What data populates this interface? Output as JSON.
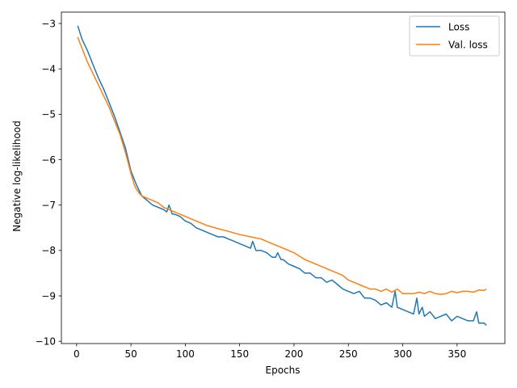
{
  "chart_data": {
    "type": "line",
    "title": "",
    "xlabel": "Epochs",
    "ylabel": "Negative log-likelihood",
    "xlim": [
      -14,
      394
    ],
    "ylim": [
      -10.05,
      -2.75
    ],
    "x_ticks": [
      0,
      50,
      100,
      150,
      200,
      250,
      300,
      350
    ],
    "y_ticks": [
      -10,
      -9,
      -8,
      -7,
      -6,
      -5,
      -4,
      -3
    ],
    "x_tick_labels": [
      "0",
      "50",
      "100",
      "150",
      "200",
      "250",
      "300",
      "350"
    ],
    "y_tick_labels": [
      "−10",
      "−9",
      "−8",
      "−7",
      "−6",
      "−5",
      "−4",
      "−3"
    ],
    "grid": false,
    "legend": "top-right",
    "series": [
      {
        "name": "Loss",
        "color": "#1f77b4",
        "x": [
          1,
          5,
          10,
          15,
          20,
          25,
          30,
          35,
          40,
          45,
          50,
          55,
          60,
          65,
          70,
          75,
          80,
          83,
          85,
          88,
          90,
          95,
          100,
          105,
          110,
          115,
          120,
          125,
          130,
          135,
          140,
          145,
          150,
          155,
          160,
          162,
          165,
          170,
          175,
          180,
          183,
          185,
          188,
          190,
          195,
          200,
          205,
          210,
          215,
          220,
          225,
          230,
          235,
          240,
          245,
          250,
          255,
          260,
          265,
          270,
          275,
          280,
          285,
          290,
          293,
          295,
          300,
          305,
          310,
          313,
          315,
          318,
          320,
          325,
          330,
          335,
          340,
          345,
          350,
          355,
          360,
          365,
          368,
          370,
          375,
          377
        ],
        "y": [
          -3.05,
          -3.35,
          -3.6,
          -3.9,
          -4.2,
          -4.45,
          -4.75,
          -5.05,
          -5.4,
          -5.75,
          -6.25,
          -6.55,
          -6.8,
          -6.9,
          -7.0,
          -7.05,
          -7.1,
          -7.15,
          -7.0,
          -7.2,
          -7.2,
          -7.25,
          -7.35,
          -7.4,
          -7.5,
          -7.55,
          -7.6,
          -7.65,
          -7.7,
          -7.7,
          -7.75,
          -7.8,
          -7.85,
          -7.9,
          -7.95,
          -7.8,
          -8.0,
          -8.0,
          -8.05,
          -8.15,
          -8.15,
          -8.05,
          -8.2,
          -8.2,
          -8.3,
          -8.35,
          -8.4,
          -8.5,
          -8.5,
          -8.6,
          -8.6,
          -8.7,
          -8.65,
          -8.75,
          -8.85,
          -8.9,
          -8.95,
          -8.9,
          -9.05,
          -9.05,
          -9.1,
          -9.2,
          -9.15,
          -9.25,
          -8.9,
          -9.25,
          -9.3,
          -9.35,
          -9.4,
          -9.05,
          -9.4,
          -9.25,
          -9.45,
          -9.35,
          -9.5,
          -9.45,
          -9.4,
          -9.55,
          -9.45,
          -9.5,
          -9.55,
          -9.55,
          -9.35,
          -9.6,
          -9.6,
          -9.65
        ]
      },
      {
        "name": "Val. loss",
        "color": "#ff7f0e",
        "x": [
          1,
          5,
          10,
          15,
          20,
          25,
          30,
          35,
          40,
          45,
          50,
          53,
          55,
          58,
          60,
          65,
          70,
          75,
          80,
          85,
          90,
          95,
          100,
          110,
          120,
          130,
          140,
          150,
          160,
          170,
          180,
          190,
          200,
          210,
          220,
          230,
          240,
          245,
          250,
          255,
          260,
          265,
          270,
          275,
          280,
          285,
          290,
          295,
          300,
          305,
          310,
          315,
          320,
          325,
          330,
          335,
          340,
          345,
          350,
          355,
          360,
          365,
          370,
          375,
          377
        ],
        "y": [
          -3.3,
          -3.55,
          -3.85,
          -4.1,
          -4.35,
          -4.6,
          -4.85,
          -5.15,
          -5.45,
          -5.85,
          -6.3,
          -6.55,
          -6.65,
          -6.75,
          -6.8,
          -6.85,
          -6.9,
          -6.95,
          -7.05,
          -7.1,
          -7.15,
          -7.2,
          -7.25,
          -7.35,
          -7.45,
          -7.52,
          -7.58,
          -7.65,
          -7.7,
          -7.75,
          -7.85,
          -7.95,
          -8.05,
          -8.2,
          -8.3,
          -8.4,
          -8.5,
          -8.55,
          -8.65,
          -8.7,
          -8.75,
          -8.8,
          -8.85,
          -8.85,
          -8.9,
          -8.85,
          -8.92,
          -8.85,
          -8.95,
          -8.95,
          -8.95,
          -8.92,
          -8.95,
          -8.9,
          -8.95,
          -8.97,
          -8.95,
          -8.9,
          -8.93,
          -8.9,
          -8.9,
          -8.92,
          -8.87,
          -8.88,
          -8.85
        ]
      }
    ]
  }
}
